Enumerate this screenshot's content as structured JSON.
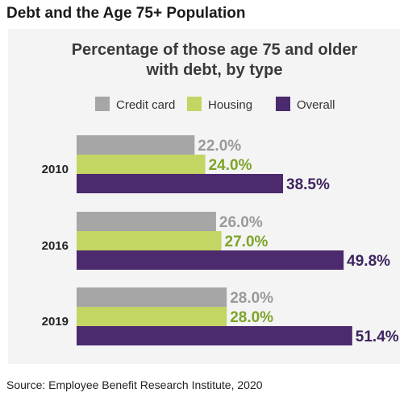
{
  "header": "Debt and the Age 75+ Population",
  "source": "Source: Employee Benefit Research Institute, 2020",
  "colors": {
    "Credit card": "#a6a6a6",
    "Housing": "#c3d562",
    "Overall": "#4b2a6e",
    "label_credit": "#9a9a9a",
    "label_housing": "#7ea428",
    "label_overall": "#3d2460"
  },
  "chart_data": {
    "type": "bar",
    "orientation": "horizontal",
    "title": "Percentage of those age 75 and older with debt, by type",
    "title_lines": [
      "Percentage of those age 75 and older",
      "with debt, by type"
    ],
    "categories": [
      "2010",
      "2016",
      "2019"
    ],
    "series": [
      {
        "name": "Credit card",
        "values": [
          22.0,
          26.0,
          28.0
        ],
        "labels": [
          "22.0%",
          "26.0%",
          "28.0%"
        ]
      },
      {
        "name": "Housing",
        "values": [
          24.0,
          27.0,
          28.0
        ],
        "labels": [
          "24.0%",
          "27.0%",
          "28.0%"
        ]
      },
      {
        "name": "Overall",
        "values": [
          38.5,
          49.8,
          51.4
        ],
        "labels": [
          "38.5%",
          "49.8%",
          "51.4%"
        ]
      }
    ],
    "legend_position": "top",
    "grid": false
  }
}
